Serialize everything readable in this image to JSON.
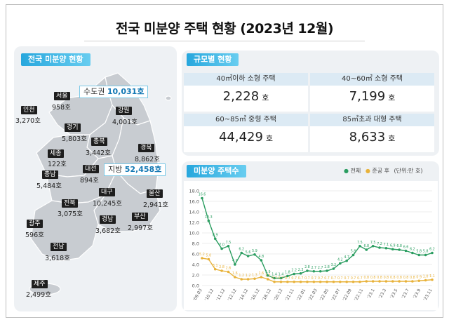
{
  "title": "전국 미분양 주택 현황 (2023년 12월)",
  "map": {
    "tag": "전국 미분양 현황",
    "callouts": {
      "capital_label": "수도권",
      "capital_value": "10,031호",
      "local_label": "지방",
      "local_value": "52,458호"
    },
    "regions": [
      {
        "name": "서울",
        "value": "958호"
      },
      {
        "name": "인천",
        "value": "3,270호"
      },
      {
        "name": "경기",
        "value": "5,803호"
      },
      {
        "name": "강원",
        "value": "4,001호"
      },
      {
        "name": "충북",
        "value": "3,442호"
      },
      {
        "name": "경북",
        "value": "8,862호"
      },
      {
        "name": "세종",
        "value": "122호"
      },
      {
        "name": "충남",
        "value": "5,484호"
      },
      {
        "name": "대전",
        "value": "894호"
      },
      {
        "name": "전북",
        "value": "3,075호"
      },
      {
        "name": "대구",
        "value": "10,245호"
      },
      {
        "name": "울산",
        "value": "2,941호"
      },
      {
        "name": "경남",
        "value": "3,682호"
      },
      {
        "name": "부산",
        "value": "2,997호"
      },
      {
        "name": "광주",
        "value": "596호"
      },
      {
        "name": "전남",
        "value": "3,618호"
      },
      {
        "name": "제주",
        "value": "2,499호"
      }
    ],
    "colors": {
      "land": "#c8ccd1",
      "outline": "#ffffff",
      "tag": "#27a7dd"
    }
  },
  "size": {
    "tag": "규모별 현황",
    "cells": [
      {
        "label": "40㎡이하 소형 주택",
        "value": "2,228",
        "unit": "호"
      },
      {
        "label": "40~60㎡ 소형 주택",
        "value": "7,199",
        "unit": "호"
      },
      {
        "label": "60~85㎡ 중형 주택",
        "value": "44,429",
        "unit": "호"
      },
      {
        "label": "85㎡초과 대형 주택",
        "value": "8,633",
        "unit": "호"
      }
    ]
  },
  "chart": {
    "tag": "미분양 주택수",
    "legend": {
      "total": "전체",
      "after": "준공 후",
      "unit": "(단위:만 호)"
    },
    "colors": {
      "total": "#2a9d60",
      "after": "#e8b23a",
      "grid": "#dddddd"
    }
  },
  "chart_data": {
    "type": "line",
    "ylim": [
      0,
      18
    ],
    "yticks": [
      "0.0",
      "2.0",
      "4.0",
      "6.0",
      "8.0",
      "10.0",
      "12.0",
      "14.0",
      "16.0",
      "18.0"
    ],
    "xticks": [
      "'09.03",
      "'10.12",
      "'11.12",
      "'12.12",
      "'14.12",
      "'16.12",
      "'18.12",
      "'20.12",
      "'21.11",
      "'22.01",
      "'22.03",
      "'22.05",
      "'22.07",
      "'22.09",
      "'22.11",
      "'23.1",
      "'23.3",
      "'23.5",
      "'23.7",
      "'23.9",
      "'23.11"
    ],
    "series": [
      {
        "name": "전체",
        "values": [
          16.6,
          12.3,
          8.9,
          7.0,
          7.5,
          4.0,
          6.2,
          5.6,
          5.9,
          4.8,
          1.9,
          1.4,
          1.4,
          1.8,
          2.2,
          2.3,
          2.8,
          2.7,
          2.7,
          2.8,
          3.2,
          4.2,
          4.7,
          5.8,
          7.5,
          6.8,
          7.5,
          7.2,
          7.1,
          6.9,
          6.8,
          6.6,
          6.2,
          5.8,
          5.8,
          6.2
        ]
      },
      {
        "name": "준공 후",
        "values": [
          5.2,
          5.0,
          3.1,
          2.8,
          2.6,
          1.6,
          1.2,
          1.2,
          1.3,
          1.6,
          1.2,
          0.7,
          0.7,
          0.7,
          0.7,
          0.7,
          0.7,
          0.7,
          0.7,
          0.7,
          0.7,
          0.7,
          0.7,
          0.7,
          0.7,
          0.8,
          0.8,
          0.8,
          0.8,
          0.8,
          0.8,
          0.8,
          0.8,
          0.9,
          1.0,
          1.1
        ]
      }
    ],
    "point_labels": {
      "total": [
        "16.6",
        "12.3",
        "8.9",
        "7.0",
        "7.5",
        "4.0",
        "6.2",
        "5.6",
        "5.9",
        "4.8",
        "1.9",
        "1.4",
        "1.4",
        "1.8",
        "2.2",
        "2.3",
        "2.8",
        "2.7",
        "2.7",
        "2.8",
        "3.2",
        "4.2",
        "4.7",
        "5.8",
        "7.5",
        "6.8",
        "7.5",
        "7.2",
        "7.1",
        "6.9",
        "6.8",
        "6.6",
        "6.2",
        "5.8",
        "5.8",
        "6.2"
      ],
      "after": [
        "5.2",
        "5.0",
        "3.1",
        "2.8",
        "2.6",
        "1.6",
        "1.2",
        "1.2",
        "1.3",
        "1.6",
        "1.2",
        "0.7",
        "0.7",
        "0.7",
        "0.7",
        "0.7",
        "0.7",
        "0.7",
        "0.7",
        "0.7",
        "0.7",
        "0.7",
        "0.7",
        "0.7",
        "0.7",
        "0.8",
        "0.8",
        "0.8",
        "0.8",
        "0.8",
        "0.8",
        "0.8",
        "0.8",
        "0.9",
        "1.0",
        "1.1"
      ]
    }
  }
}
